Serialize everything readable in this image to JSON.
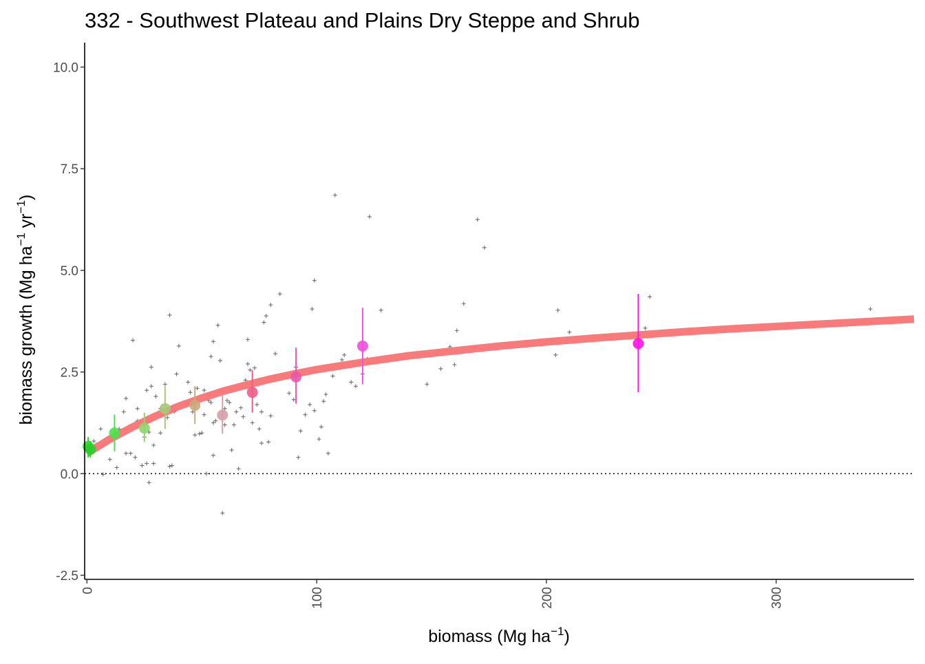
{
  "chart_data": {
    "type": "scatter",
    "title": "332 - Southwest Plateau and Plains Dry Steppe and Shrub",
    "xlabel": {
      "base": "biomass (Mg ha",
      "sup": "−1",
      "close": ")"
    },
    "ylabel": {
      "base": "biomass growth (Mg ha",
      "sup1": "−1",
      "mid": " yr",
      "sup2": "−1",
      "close": ")"
    },
    "xlim": [
      -1,
      360
    ],
    "ylim": [
      -2.6,
      10.6
    ],
    "x_ticks": [
      {
        "value": 0,
        "label": "0"
      },
      {
        "value": 100,
        "label": "100"
      },
      {
        "value": 200,
        "label": "200"
      },
      {
        "value": 300,
        "label": "300"
      }
    ],
    "y_ticks": [
      {
        "value": -2.5,
        "label": "-2.5"
      },
      {
        "value": 0,
        "label": "0.0"
      },
      {
        "value": 2.5,
        "label": "2.5"
      },
      {
        "value": 5,
        "label": "5.0"
      },
      {
        "value": 7.5,
        "label": "7.5"
      },
      {
        "value": 10,
        "label": "10.0"
      }
    ],
    "grid": false,
    "reference_line": {
      "y": 0,
      "style": "dotted"
    },
    "fitted_curve": {
      "color": "#f87a7a",
      "x": [
        0,
        10,
        20,
        30,
        40,
        50,
        60,
        70,
        80,
        90,
        100,
        120,
        140,
        160,
        180,
        200,
        220,
        240,
        260,
        280,
        300,
        320,
        340,
        360
      ],
      "y": [
        0.5,
        0.85,
        1.15,
        1.42,
        1.66,
        1.86,
        2.04,
        2.19,
        2.33,
        2.45,
        2.56,
        2.74,
        2.9,
        3.02,
        3.14,
        3.24,
        3.33,
        3.41,
        3.49,
        3.56,
        3.62,
        3.68,
        3.74,
        3.8
      ]
    },
    "binned_means": [
      {
        "x": 0.5,
        "y": 0.67,
        "lo": 0.4,
        "hi": 0.9,
        "color": "#22e022"
      },
      {
        "x": 1.5,
        "y": 0.6,
        "lo": 0.4,
        "hi": 0.8,
        "color": "#2ecc2e"
      },
      {
        "x": 12,
        "y": 1.0,
        "lo": 0.55,
        "hi": 1.45,
        "color": "#4ee04e"
      },
      {
        "x": 25,
        "y": 1.12,
        "lo": 0.78,
        "hi": 1.5,
        "color": "#8ed46e"
      },
      {
        "x": 34,
        "y": 1.6,
        "lo": 1.1,
        "hi": 2.15,
        "color": "#a8c878"
      },
      {
        "x": 47,
        "y": 1.68,
        "lo": 1.22,
        "hi": 2.15,
        "color": "#c8a87e"
      },
      {
        "x": 59,
        "y": 1.44,
        "lo": 0.98,
        "hi": 1.95,
        "color": "#d4a0a8"
      },
      {
        "x": 72,
        "y": 2.0,
        "lo": 1.5,
        "hi": 2.55,
        "color": "#ee5c84"
      },
      {
        "x": 91,
        "y": 2.38,
        "lo": 1.72,
        "hi": 3.1,
        "color": "#e858a8"
      },
      {
        "x": 120,
        "y": 3.14,
        "lo": 2.2,
        "hi": 4.08,
        "color": "#f04ede"
      },
      {
        "x": 240,
        "y": 3.2,
        "lo": 2.0,
        "hi": 4.42,
        "color": "#ff12e8"
      }
    ],
    "raw_points": [
      [
        1,
        0.55
      ],
      [
        2,
        0.65
      ],
      [
        3,
        0.8
      ],
      [
        4,
        0.72
      ],
      [
        6,
        1.1
      ],
      [
        7,
        -0.02
      ],
      [
        8,
        0.78
      ],
      [
        10,
        0.35
      ],
      [
        11,
        0.82
      ],
      [
        12,
        0.95
      ],
      [
        13,
        0.15
      ],
      [
        14,
        1.1
      ],
      [
        16,
        1.52
      ],
      [
        17,
        1.85
      ],
      [
        17,
        0.5
      ],
      [
        18,
        1.15
      ],
      [
        19,
        0.5
      ],
      [
        20,
        3.28
      ],
      [
        21,
        0.4
      ],
      [
        22,
        1.3
      ],
      [
        22,
        1.6
      ],
      [
        23,
        1.2
      ],
      [
        24,
        0.2
      ],
      [
        25,
        0.9
      ],
      [
        26,
        2.05
      ],
      [
        26,
        0.25
      ],
      [
        27,
        -0.22
      ],
      [
        27,
        1.02
      ],
      [
        28,
        2.15
      ],
      [
        28,
        2.62
      ],
      [
        29,
        0.25
      ],
      [
        29,
        0.7
      ],
      [
        30,
        1.9
      ],
      [
        31,
        1.5
      ],
      [
        32,
        1.6
      ],
      [
        32,
        1.0
      ],
      [
        34,
        2.2
      ],
      [
        35,
        1.38
      ],
      [
        36,
        0.18
      ],
      [
        36,
        3.9
      ],
      [
        37,
        0.2
      ],
      [
        38,
        1.52
      ],
      [
        39,
        2.45
      ],
      [
        40,
        3.14
      ],
      [
        42,
        1.7
      ],
      [
        44,
        2.25
      ],
      [
        45,
        2.0
      ],
      [
        46,
        1.52
      ],
      [
        47,
        0.95
      ],
      [
        48,
        2.1
      ],
      [
        49,
        0.98
      ],
      [
        50,
        1.88
      ],
      [
        50,
        1.0
      ],
      [
        51,
        2.05
      ],
      [
        51,
        1.45
      ],
      [
        52,
        0.0
      ],
      [
        53,
        1.8
      ],
      [
        54,
        2.88
      ],
      [
        54,
        1.75
      ],
      [
        55,
        3.25
      ],
      [
        55,
        1.25
      ],
      [
        55,
        0.45
      ],
      [
        56,
        1.3
      ],
      [
        57,
        3.65
      ],
      [
        58,
        2.78
      ],
      [
        59,
        -0.97
      ],
      [
        60,
        1.6
      ],
      [
        60,
        1.2
      ],
      [
        61,
        1.8
      ],
      [
        62,
        1.75
      ],
      [
        63,
        0.58
      ],
      [
        64,
        1.2
      ],
      [
        65,
        1.52
      ],
      [
        66,
        0.12
      ],
      [
        67,
        1.62
      ],
      [
        68,
        1.4
      ],
      [
        69,
        2.3
      ],
      [
        70,
        3.3
      ],
      [
        70,
        2.7
      ],
      [
        71,
        2.55
      ],
      [
        72,
        1.25
      ],
      [
        73,
        2.6
      ],
      [
        74,
        1.7
      ],
      [
        75,
        1.1
      ],
      [
        76,
        1.52
      ],
      [
        76,
        0.75
      ],
      [
        77,
        3.72
      ],
      [
        78,
        3.88
      ],
      [
        79,
        0.78
      ],
      [
        80,
        1.42
      ],
      [
        80,
        4.15
      ],
      [
        82,
        2.95
      ],
      [
        84,
        4.42
      ],
      [
        86,
        2.4
      ],
      [
        88,
        1.98
      ],
      [
        90,
        1.82
      ],
      [
        91,
        2.62
      ],
      [
        92,
        0.4
      ],
      [
        93,
        1.05
      ],
      [
        95,
        1.45
      ],
      [
        97,
        1.7
      ],
      [
        98,
        4.05
      ],
      [
        99,
        1.55
      ],
      [
        99,
        4.75
      ],
      [
        101,
        0.85
      ],
      [
        102,
        1.15
      ],
      [
        103,
        1.78
      ],
      [
        104,
        1.95
      ],
      [
        105,
        0.5
      ],
      [
        107,
        2.4
      ],
      [
        108,
        6.85
      ],
      [
        110,
        2.6
      ],
      [
        111,
        2.8
      ],
      [
        112,
        2.92
      ],
      [
        115,
        2.25
      ],
      [
        117,
        2.15
      ],
      [
        120,
        2.45
      ],
      [
        122,
        2.82
      ],
      [
        123,
        6.32
      ],
      [
        124,
        2.8
      ],
      [
        126,
        2.82
      ],
      [
        128,
        4.02
      ],
      [
        148,
        2.2
      ],
      [
        154,
        2.58
      ],
      [
        158,
        3.12
      ],
      [
        160,
        2.68
      ],
      [
        161,
        3.52
      ],
      [
        164,
        4.18
      ],
      [
        170,
        6.25
      ],
      [
        173,
        5.56
      ],
      [
        204,
        2.92
      ],
      [
        205,
        4.02
      ],
      [
        210,
        3.48
      ],
      [
        243,
        3.58
      ],
      [
        245,
        4.35
      ],
      [
        341,
        4.05
      ]
    ]
  }
}
